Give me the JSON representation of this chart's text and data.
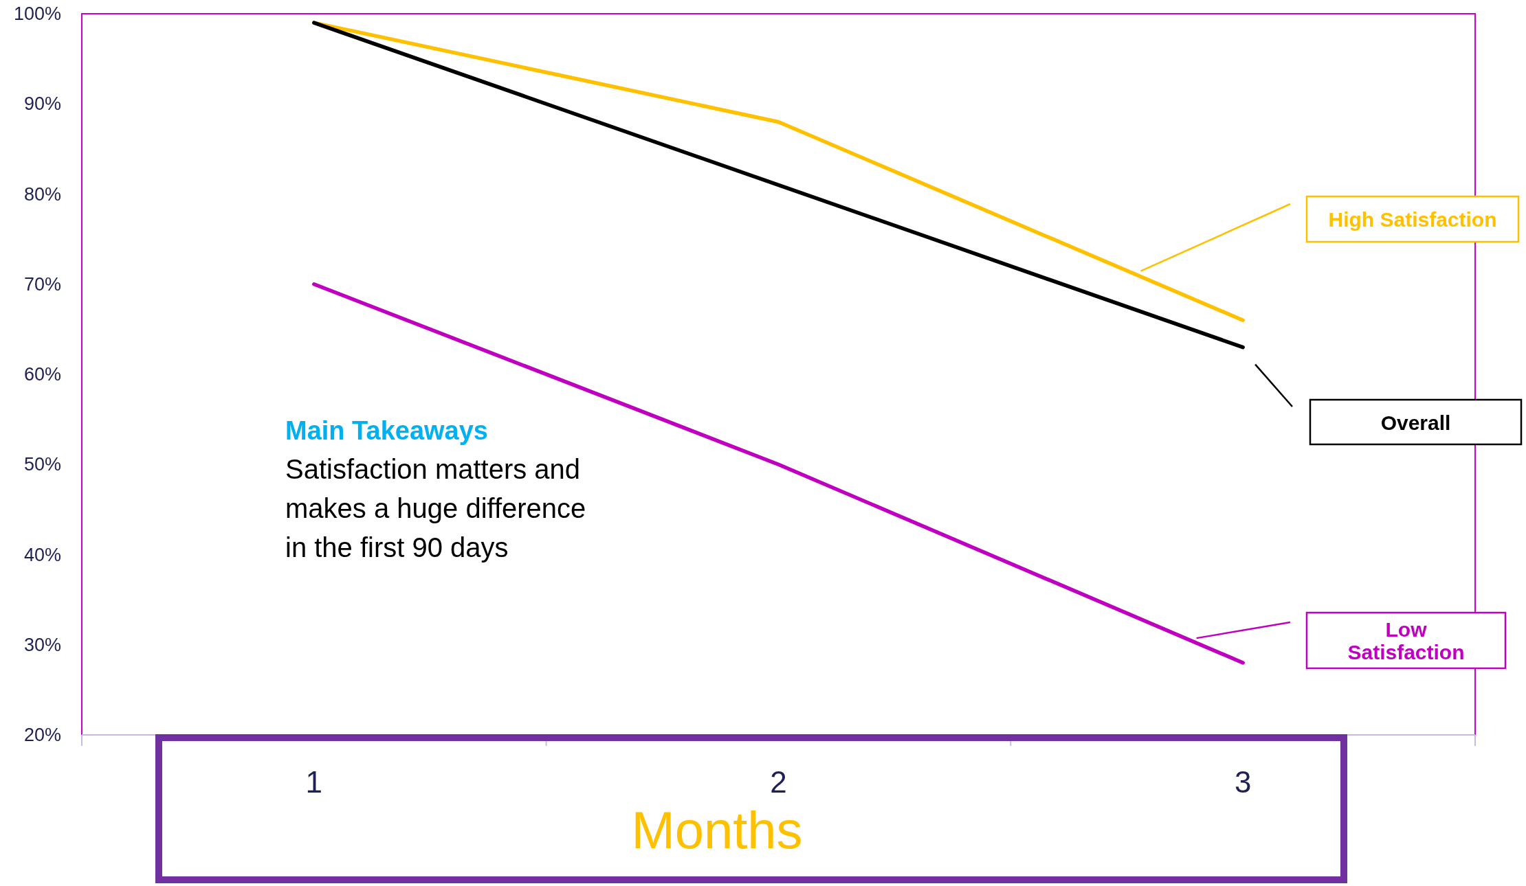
{
  "chart_data": {
    "type": "line",
    "xlabel": "Months",
    "categories": [
      "1",
      "2",
      "3"
    ],
    "ylim": [
      20,
      100
    ],
    "yticks": [
      {
        "value": 20,
        "label": "20%"
      },
      {
        "value": 30,
        "label": "30%"
      },
      {
        "value": 40,
        "label": "40%"
      },
      {
        "value": 50,
        "label": "50%"
      },
      {
        "value": 60,
        "label": "60%"
      },
      {
        "value": 70,
        "label": "70%"
      },
      {
        "value": 80,
        "label": "80%"
      },
      {
        "value": 90,
        "label": "90%"
      },
      {
        "value": 100,
        "label": "100%"
      }
    ],
    "series": [
      {
        "name": "High Satisfaction",
        "color": "#ffc000",
        "values": [
          99,
          88,
          66
        ]
      },
      {
        "name": "Overall",
        "color": "#000000",
        "values": [
          99,
          81,
          63
        ]
      },
      {
        "name": "Low Satisfaction",
        "color": "#c000c0",
        "values": [
          70,
          50,
          28
        ]
      }
    ],
    "annotations": [
      "Main Takeaways",
      "Satisfaction matters and makes a huge difference in the first 90 days"
    ],
    "line_style": "solid"
  }
}
